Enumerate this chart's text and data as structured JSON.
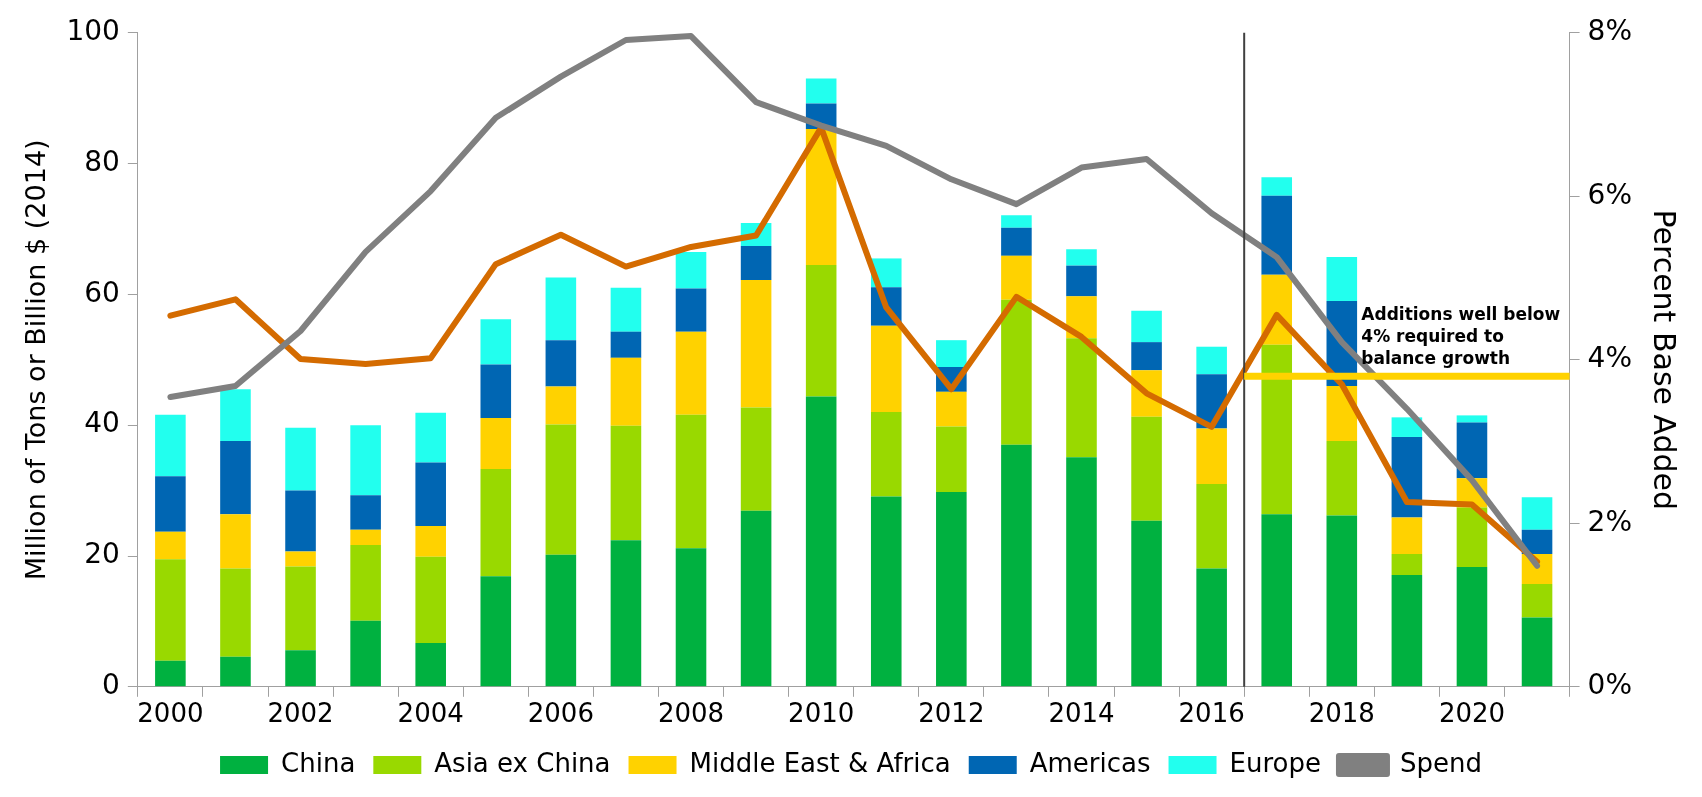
{
  "chart_data": {
    "type": "bar",
    "stacked": true,
    "ylabel": "Million of Tons or Billion $ (2014)",
    "y2label": "Percent Base Added",
    "categories": [
      "2000",
      null,
      "2002",
      null,
      "2004",
      null,
      "2006",
      null,
      "2008",
      null,
      "2010",
      null,
      "2012",
      null,
      "2014",
      null,
      "2016",
      null,
      "2018",
      null,
      "2020",
      null
    ],
    "ylim": [
      0,
      100
    ],
    "yticks": [
      0,
      20,
      40,
      60,
      80,
      100
    ],
    "y2lim": [
      0,
      8
    ],
    "y2ticks": [
      {
        "value": 0,
        "label": "0%"
      },
      {
        "value": 2,
        "label": "2%"
      },
      {
        "value": 4,
        "label": "4%"
      },
      {
        "value": 6,
        "label": "6%"
      },
      {
        "value": 8,
        "label": "8%"
      }
    ],
    "series": [
      {
        "name": "China",
        "color": "#00b140",
        "values": [
          4,
          4.6,
          5.6,
          10.1,
          6.7,
          16.9,
          20.2,
          22.4,
          21.2,
          26.9,
          44.4,
          29.1,
          29.8,
          37,
          35.1,
          25.4,
          18.1,
          26.4,
          26.2,
          17.1,
          18.3,
          10.6
        ]
      },
      {
        "name": "Asia ex China",
        "color": "#99d900",
        "values": [
          15.5,
          13.5,
          12.8,
          11.6,
          13.2,
          16.4,
          19.9,
          17.5,
          20.4,
          15.8,
          20.1,
          12.9,
          10,
          22.2,
          18.2,
          15.9,
          12.9,
          25.9,
          11.4,
          3.2,
          9.1,
          5.1
        ]
      },
      {
        "name": "Middle East & Africa",
        "color": "#ffd200",
        "values": [
          4.2,
          8.3,
          2.3,
          2.3,
          4.7,
          7.8,
          5.8,
          10.4,
          12.7,
          19.5,
          20.8,
          13.2,
          5.3,
          6.7,
          6.4,
          7.1,
          8.5,
          10.7,
          8.4,
          5.6,
          4.5,
          4.6
        ]
      },
      {
        "name": "Americas",
        "color": "#0066b3",
        "values": [
          8.5,
          11.2,
          9.3,
          5.3,
          9.7,
          8.2,
          7.1,
          4,
          6.6,
          5.2,
          3.9,
          5.9,
          3.8,
          4.3,
          4.7,
          4.3,
          8.3,
          12.1,
          13,
          12.3,
          8.5,
          3.7
        ]
      },
      {
        "name": "Europe",
        "color": "#22ffee",
        "values": [
          9.4,
          7.9,
          9.6,
          10.7,
          7.6,
          6.9,
          9.6,
          6.7,
          5.6,
          3.5,
          3.8,
          4.4,
          4.1,
          1.9,
          2.5,
          4.8,
          4.2,
          2.8,
          6.7,
          3,
          1.1,
          5
        ]
      },
      {
        "name": "Spend",
        "type": "line",
        "color": "#808080",
        "values": [
          44.3,
          46,
          54.4,
          66.5,
          75.8,
          87,
          93.3,
          98.9,
          99.5,
          89.4,
          85.8,
          82.7,
          77.6,
          73.8,
          79.4,
          80.7,
          72.4,
          65.7,
          52.7,
          42.5,
          31.6,
          18.5
        ]
      },
      {
        "type": "line",
        "axis": "y2",
        "color": "#d46b00",
        "values": [
          4.54,
          4.74,
          4.01,
          3.95,
          4.02,
          5.17,
          5.53,
          5.14,
          5.38,
          5.52,
          6.84,
          4.64,
          3.64,
          4.77,
          4.28,
          3.59,
          3.18,
          4.55,
          3.7,
          2.26,
          2.23,
          1.53
        ]
      }
    ],
    "ref_lines": [
      {
        "axis": "y2",
        "value": 3.8,
        "color": "#ffd200",
        "label": "Additions well below  4% required to balance growth"
      }
    ],
    "grid": false,
    "legend": "bottom"
  }
}
